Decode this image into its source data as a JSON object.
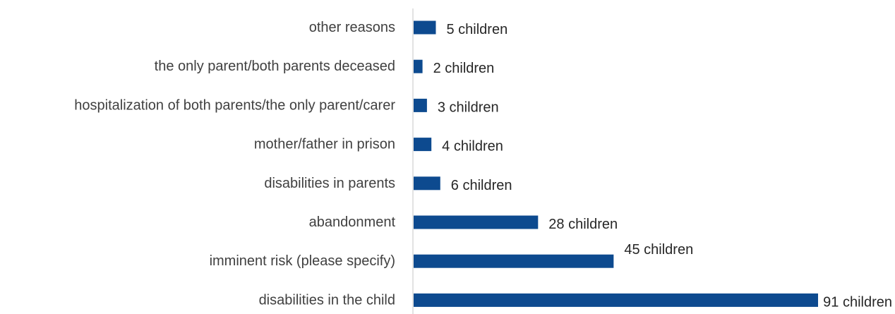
{
  "chart_data": {
    "type": "bar",
    "orientation": "horizontal",
    "categories": [
      "other reasons",
      "the only parent/both parents deceased",
      "hospitalization of both parents/the only parent/carer",
      "mother/father in prison",
      "disabilities in parents",
      "abandonment",
      "imminent risk (please specify)",
      "disabilities in the child"
    ],
    "values": [
      5,
      2,
      3,
      4,
      6,
      28,
      45,
      91
    ],
    "data_labels": [
      "5 children",
      "2 children",
      "3 children",
      "4 children",
      "6 children",
      "28 children",
      "45 children",
      "91 children"
    ],
    "xlim": [
      0,
      91
    ],
    "grid": false,
    "legend": "none",
    "colors": {
      "bar": "#0d4a8f",
      "axis": "#d9d9d9"
    }
  }
}
